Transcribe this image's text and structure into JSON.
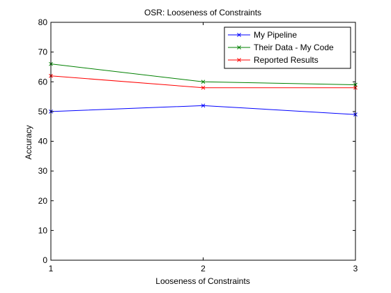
{
  "chart_data": {
    "type": "line",
    "title": "OSR: Looseness of Constraints",
    "xlabel": "Looseness of Constraints",
    "ylabel": "Accuracy",
    "xlim": [
      1,
      3
    ],
    "ylim": [
      0,
      80
    ],
    "x": [
      1,
      2,
      3
    ],
    "xticks": [
      "1",
      "2",
      "3"
    ],
    "yticks": [
      "0",
      "10",
      "20",
      "30",
      "40",
      "50",
      "60",
      "70",
      "80"
    ],
    "grid": false,
    "legend_position": "top-right",
    "series": [
      {
        "name": "My Pipeline",
        "color": "#0000ff",
        "marker": "x",
        "values": [
          50,
          52,
          49
        ]
      },
      {
        "name": "Their Data - My Code",
        "color": "#008000",
        "marker": "x",
        "values": [
          66,
          60,
          59
        ]
      },
      {
        "name": "Reported Results",
        "color": "#ff0000",
        "marker": "x",
        "values": [
          62,
          58,
          58
        ]
      }
    ]
  }
}
